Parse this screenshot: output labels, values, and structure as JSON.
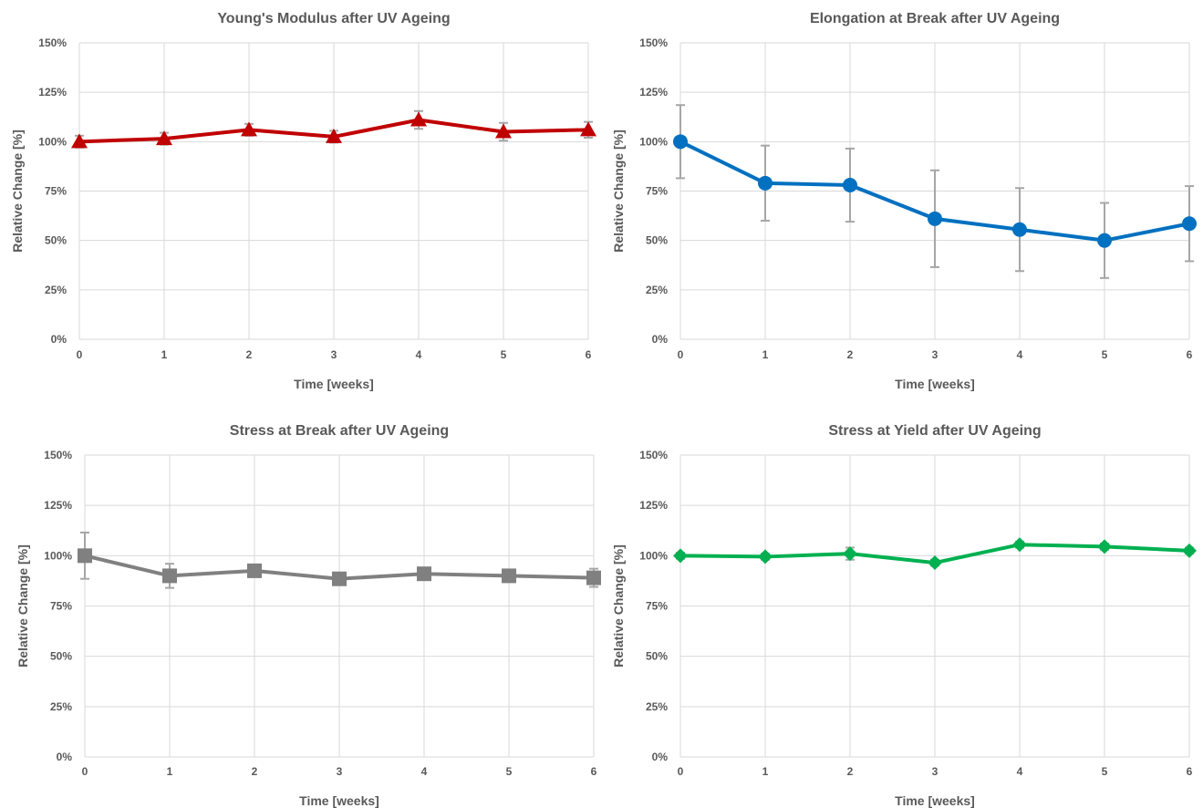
{
  "chart_data": [
    {
      "type": "line",
      "title": "Young's Modulus after UV Ageing",
      "xlabel": "Time [weeks]",
      "ylabel": "Relative Change [%]",
      "x": [
        0,
        1,
        2,
        3,
        4,
        5,
        6
      ],
      "x_tick_labels": [
        "0",
        "1",
        "2",
        "3",
        "4",
        "5",
        "6"
      ],
      "y_tick_labels": [
        "0%",
        "25%",
        "50%",
        "75%",
        "100%",
        "125%",
        "150%"
      ],
      "ylim": [
        0,
        150
      ],
      "grid": true,
      "series": [
        {
          "color": "#c00000",
          "marker": "triangle",
          "values": [
            100,
            101.5,
            106,
            102.5,
            111,
            105,
            106
          ],
          "error": [
            3,
            3,
            3,
            3,
            4.5,
            4.5,
            4
          ]
        }
      ]
    },
    {
      "type": "line",
      "title": "Elongation at Break after UV Ageing",
      "xlabel": "Time [weeks]",
      "ylabel": "Relative Change [%]",
      "x": [
        0,
        1,
        2,
        3,
        4,
        5,
        6
      ],
      "x_tick_labels": [
        "0",
        "1",
        "2",
        "3",
        "4",
        "5",
        "6"
      ],
      "y_tick_labels": [
        "0%",
        "25%",
        "50%",
        "75%",
        "100%",
        "125%",
        "150%"
      ],
      "ylim": [
        0,
        150
      ],
      "grid": true,
      "series": [
        {
          "color": "#0070c0",
          "marker": "circle",
          "values": [
            100,
            79,
            78,
            61,
            55.5,
            50,
            58.5
          ],
          "error": [
            18.5,
            19,
            18.5,
            24.5,
            21,
            19,
            19
          ]
        }
      ]
    },
    {
      "type": "line",
      "title": "Stress at Break after UV Ageing",
      "xlabel": "Time [weeks]",
      "ylabel": "Relative Change [%]",
      "x": [
        0,
        1,
        2,
        3,
        4,
        5,
        6
      ],
      "x_tick_labels": [
        "0",
        "1",
        "2",
        "3",
        "4",
        "5",
        "6"
      ],
      "y_tick_labels": [
        "0%",
        "25%",
        "50%",
        "75%",
        "100%",
        "125%",
        "150%"
      ],
      "ylim": [
        0,
        150
      ],
      "grid": true,
      "series": [
        {
          "color": "#808080",
          "marker": "square",
          "values": [
            100,
            90,
            92.5,
            88.5,
            91,
            90,
            89
          ],
          "error": [
            11.5,
            6,
            2,
            2,
            2,
            2,
            4.5
          ]
        }
      ]
    },
    {
      "type": "line",
      "title": "Stress at Yield after UV Ageing",
      "xlabel": "Time [weeks]",
      "ylabel": "Relative Change [%]",
      "x": [
        0,
        1,
        2,
        3,
        4,
        5,
        6
      ],
      "x_tick_labels": [
        "0",
        "1",
        "2",
        "3",
        "4",
        "5",
        "6"
      ],
      "y_tick_labels": [
        "0%",
        "25%",
        "50%",
        "75%",
        "100%",
        "125%",
        "150%"
      ],
      "ylim": [
        0,
        150
      ],
      "grid": true,
      "series": [
        {
          "color": "#00b050",
          "marker": "diamond",
          "values": [
            100,
            99.5,
            101,
            96.5,
            105.5,
            104.5,
            102.5
          ],
          "error": [
            1.5,
            1.5,
            3,
            1.5,
            1.5,
            1.5,
            1.5
          ]
        }
      ]
    }
  ]
}
